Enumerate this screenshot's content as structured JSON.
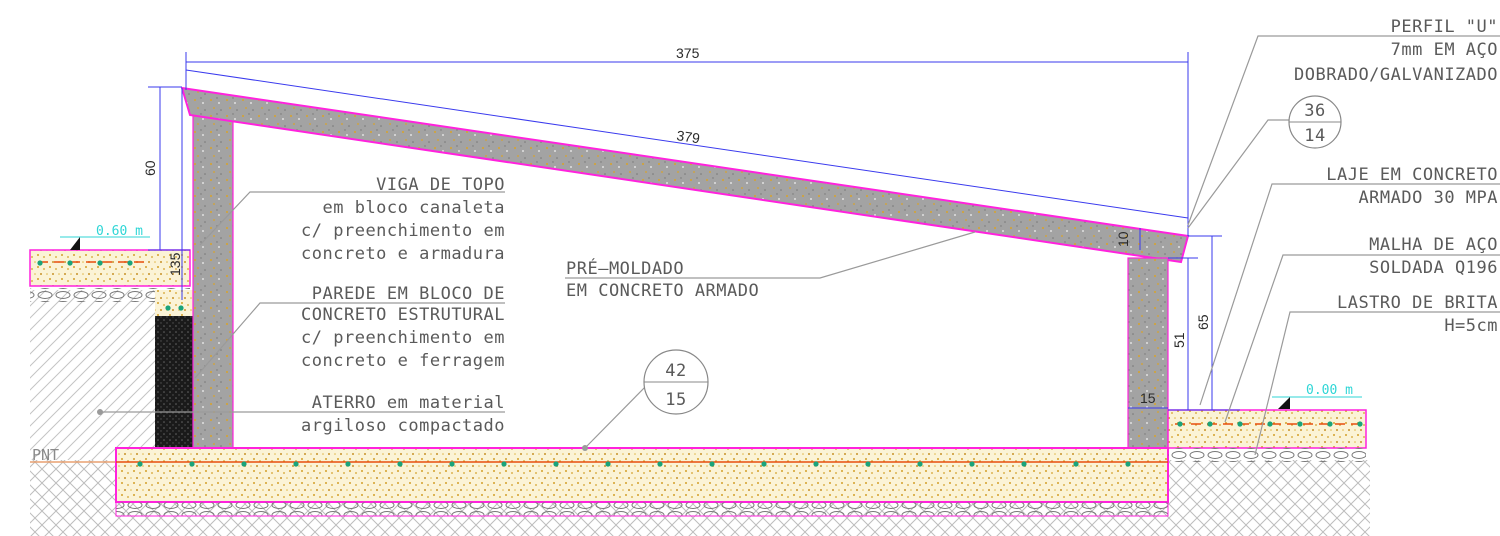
{
  "colors": {
    "concrete": "#9a9a9a",
    "aggregate": "#d4a12a",
    "outline": "#ff22dd",
    "dimension": "#3a3aee",
    "leader": "#9a9a9a",
    "text": "#5a5a5a",
    "level": "#2fd6d6",
    "rebar": "#e84e0f",
    "soil_hatch": "#b8b8b8"
  },
  "dimensions": {
    "span_horizontal": "375",
    "span_inclined": "379",
    "left_rise": "60",
    "left_wall_segment": "135",
    "slab_thickness": "10",
    "right_height_total": "65",
    "right_height_wall": "51",
    "right_wall_width": "15"
  },
  "levels": {
    "left": "0.60 m",
    "right": "0.00 m",
    "natural_ground": "PNT"
  },
  "callouts": {
    "roof": {
      "top": "36",
      "bottom": "14"
    },
    "floor": {
      "top": "42",
      "bottom": "15"
    }
  },
  "labels": {
    "viga": [
      "VIGA  DE TOPO",
      "em bloco canaleta",
      "c/ preenchimento em",
      "concreto e armadura"
    ],
    "parede": [
      "PAREDE EM BLOCO DE",
      "CONCRETO ESTRUTURAL",
      "c/ preenchimento em",
      "concreto e ferragem"
    ],
    "aterro": [
      "ATERRO em material",
      "argiloso compactado"
    ],
    "premoldado": [
      "PRÉ–MOLDADO",
      "EM CONCRETO ARMADO"
    ],
    "perfil": [
      "PERFIL \"U\"",
      "7mm EM AÇO",
      "DOBRADO/GALVANIZADO"
    ],
    "laje": [
      "LAJE EM CONCRETO",
      "ARMADO 30 MPA"
    ],
    "malha": [
      "MALHA DE AÇO",
      "SOLDADA Q196"
    ],
    "lastro": [
      "LASTRO DE BRITA",
      "H=5cm"
    ]
  }
}
